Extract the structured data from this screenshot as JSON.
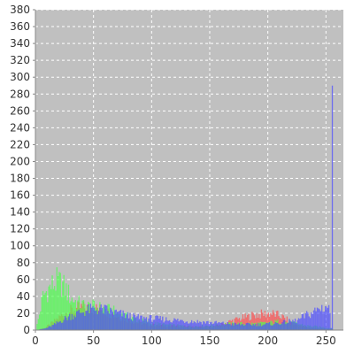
{
  "chart_data": {
    "type": "histogram",
    "title": "",
    "xlabel": "",
    "ylabel": "",
    "xlim": [
      0,
      265
    ],
    "ylim": [
      0,
      380
    ],
    "x_ticks": [
      0,
      50,
      100,
      150,
      200,
      250
    ],
    "y_ticks": [
      0,
      20,
      40,
      60,
      80,
      100,
      120,
      140,
      160,
      180,
      200,
      220,
      240,
      260,
      280,
      300,
      320,
      340,
      360,
      380
    ],
    "grid": true,
    "plot_background": "#c0c0c0",
    "series": [
      {
        "color": "#ff4d4d",
        "keypoints": [
          [
            0,
            0
          ],
          [
            8,
            3
          ],
          [
            15,
            10
          ],
          [
            22,
            18
          ],
          [
            30,
            24
          ],
          [
            38,
            28
          ],
          [
            45,
            28
          ],
          [
            52,
            27
          ],
          [
            60,
            24
          ],
          [
            68,
            18
          ],
          [
            76,
            14
          ],
          [
            85,
            10
          ],
          [
            95,
            7
          ],
          [
            105,
            6
          ],
          [
            115,
            5
          ],
          [
            125,
            5
          ],
          [
            135,
            4
          ],
          [
            145,
            4
          ],
          [
            155,
            5
          ],
          [
            160,
            7
          ],
          [
            165,
            10
          ],
          [
            172,
            13
          ],
          [
            180,
            16
          ],
          [
            188,
            19
          ],
          [
            195,
            20
          ],
          [
            202,
            21
          ],
          [
            210,
            18
          ],
          [
            216,
            13
          ],
          [
            222,
            8
          ],
          [
            228,
            5
          ],
          [
            235,
            3
          ],
          [
            245,
            2
          ],
          [
            255,
            1
          ]
        ]
      },
      {
        "color": "#4dff4d",
        "keypoints": [
          [
            0,
            0
          ],
          [
            3,
            20
          ],
          [
            6,
            42
          ],
          [
            10,
            50
          ],
          [
            14,
            56
          ],
          [
            18,
            60
          ],
          [
            22,
            58
          ],
          [
            26,
            50
          ],
          [
            30,
            40
          ],
          [
            36,
            34
          ],
          [
            42,
            30
          ],
          [
            50,
            29
          ],
          [
            58,
            27
          ],
          [
            66,
            24
          ],
          [
            74,
            19
          ],
          [
            82,
            15
          ],
          [
            90,
            12
          ],
          [
            100,
            9
          ],
          [
            110,
            7
          ],
          [
            120,
            6
          ],
          [
            130,
            5
          ],
          [
            140,
            5
          ],
          [
            150,
            6
          ],
          [
            160,
            7
          ],
          [
            170,
            8
          ],
          [
            180,
            8
          ],
          [
            190,
            8
          ],
          [
            200,
            9
          ],
          [
            210,
            11
          ],
          [
            220,
            9
          ],
          [
            228,
            7
          ],
          [
            236,
            5
          ],
          [
            245,
            4
          ],
          [
            255,
            2
          ]
        ]
      },
      {
        "color": "#4d4dff",
        "keypoints": [
          [
            0,
            0
          ],
          [
            8,
            2
          ],
          [
            15,
            6
          ],
          [
            22,
            12
          ],
          [
            30,
            18
          ],
          [
            38,
            22
          ],
          [
            45,
            25
          ],
          [
            52,
            26
          ],
          [
            60,
            25
          ],
          [
            68,
            22
          ],
          [
            76,
            19
          ],
          [
            85,
            16
          ],
          [
            95,
            15
          ],
          [
            105,
            14
          ],
          [
            115,
            13
          ],
          [
            125,
            12
          ],
          [
            135,
            11
          ],
          [
            145,
            10
          ],
          [
            155,
            9
          ],
          [
            165,
            8
          ],
          [
            175,
            7
          ],
          [
            185,
            7
          ],
          [
            195,
            7
          ],
          [
            205,
            8
          ],
          [
            215,
            10
          ],
          [
            225,
            12
          ],
          [
            232,
            18
          ],
          [
            238,
            22
          ],
          [
            244,
            27
          ],
          [
            250,
            30
          ],
          [
            253,
            25
          ],
          [
            254,
            2
          ],
          [
            255,
            290
          ],
          [
            256,
            0
          ]
        ]
      }
    ]
  }
}
